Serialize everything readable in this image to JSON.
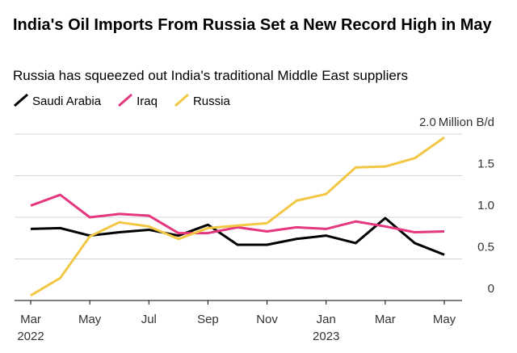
{
  "chart_data": {
    "type": "line",
    "title": "India's Oil Imports From Russia Set a New Record High in May",
    "subtitle": "Russia has squeezed out India's traditional Middle East suppliers",
    "categories": [
      "Mar",
      null,
      "May",
      null,
      "Jul",
      null,
      "Sep",
      null,
      "Nov",
      null,
      "Jan",
      null,
      "Mar",
      null,
      "May"
    ],
    "year_labels": [
      "2022",
      null,
      null,
      null,
      null,
      null,
      null,
      null,
      null,
      null,
      "2023",
      null,
      null,
      null,
      null
    ],
    "y_unit": "Million B/d",
    "series": [
      {
        "name": "Saudi Arabia",
        "color": "#000000",
        "values": [
          0.86,
          0.87,
          0.78,
          0.82,
          0.85,
          0.78,
          0.91,
          0.67,
          0.67,
          0.74,
          0.78,
          0.69,
          0.99,
          0.69,
          0.55
        ]
      },
      {
        "name": "Iraq",
        "color": "#e4377f",
        "values": [
          1.14,
          1.27,
          1.0,
          1.04,
          1.02,
          0.81,
          0.81,
          0.88,
          0.83,
          0.88,
          0.86,
          0.95,
          0.89,
          0.82,
          0.83
        ]
      },
      {
        "name": "Russia",
        "color": "#f2c744",
        "values": [
          0.06,
          0.27,
          0.77,
          0.94,
          0.89,
          0.74,
          0.87,
          0.9,
          0.93,
          1.2,
          1.28,
          1.6,
          1.61,
          1.71,
          1.96
        ]
      }
    ],
    "ylim": [
      0,
      2.1
    ],
    "yticks": [
      0,
      0.5,
      {
        "value": 1,
        "label": "1.0"
      },
      1.5,
      {
        "value": 2,
        "label": "2.0"
      }
    ],
    "grid": true,
    "legend": "top-left"
  }
}
